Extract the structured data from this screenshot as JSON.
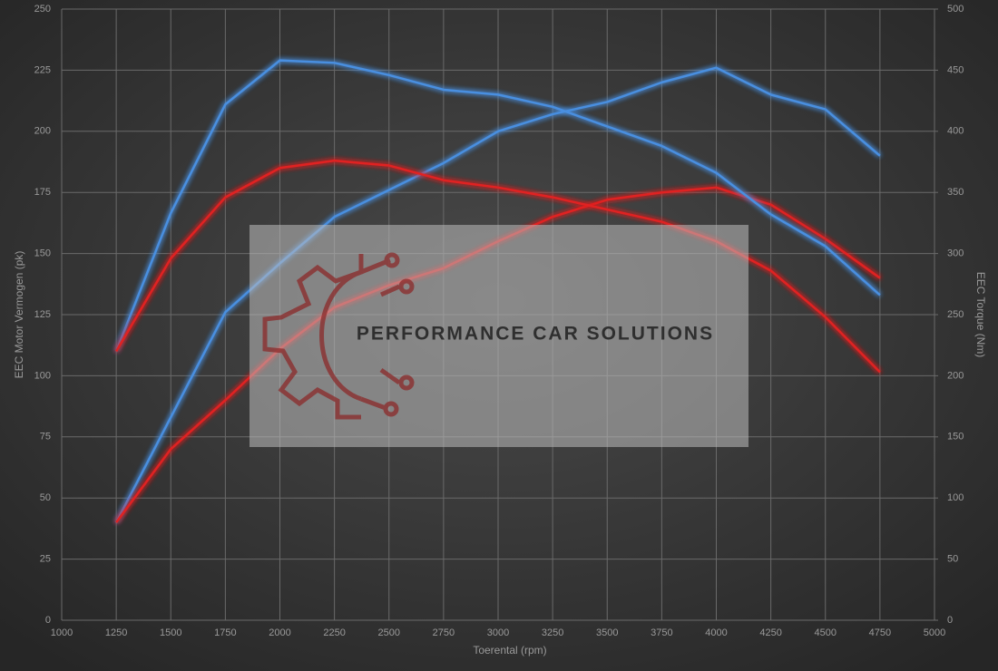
{
  "chart_data": {
    "type": "line",
    "xlabel": "Toerental (rpm)",
    "ylabel": "EEC Motor Vermogen (pk)",
    "y2label": "EEC Torque (Nm)",
    "watermark": "PERFORMANCE CAR SOLUTIONS",
    "x": [
      1250,
      1500,
      1750,
      2000,
      2250,
      2500,
      2750,
      3000,
      3250,
      3500,
      3750,
      4000,
      4250,
      4500,
      4750
    ],
    "series": [
      {
        "color": "#4a8fe0",
        "values": [
          40,
          83,
          126,
          146,
          165,
          176,
          187,
          200,
          207,
          212,
          220,
          226,
          215,
          209,
          190
        ]
      },
      {
        "color": "#e02424",
        "values": [
          40,
          70,
          90,
          111,
          128,
          137,
          144,
          155,
          165,
          172,
          175,
          177,
          170,
          156,
          140
        ]
      },
      {
        "color": "#4a8fe0",
        "axis": "y2",
        "values": [
          220,
          333,
          422,
          458,
          456,
          446,
          434,
          430,
          420,
          404,
          388,
          366,
          332,
          306,
          266
        ]
      },
      {
        "color": "#e02424",
        "axis": "y2",
        "values": [
          220,
          296,
          346,
          370,
          376,
          372,
          360,
          354,
          346,
          336,
          326,
          310,
          286,
          248,
          203
        ]
      }
    ],
    "xlim": [
      1000,
      5000
    ],
    "xticks": [
      1000,
      1250,
      1500,
      1750,
      2000,
      2250,
      2500,
      2750,
      3000,
      3250,
      3500,
      3750,
      4000,
      4250,
      4500,
      4750,
      5000
    ],
    "ylim": [
      0,
      250
    ],
    "yticks": [
      0,
      25,
      50,
      75,
      100,
      125,
      150,
      175,
      200,
      225,
      250
    ],
    "y2lim": [
      0,
      500
    ],
    "y2ticks": [
      0,
      50,
      100,
      150,
      200,
      250,
      300,
      350,
      400,
      450,
      500
    ],
    "grid": true
  }
}
